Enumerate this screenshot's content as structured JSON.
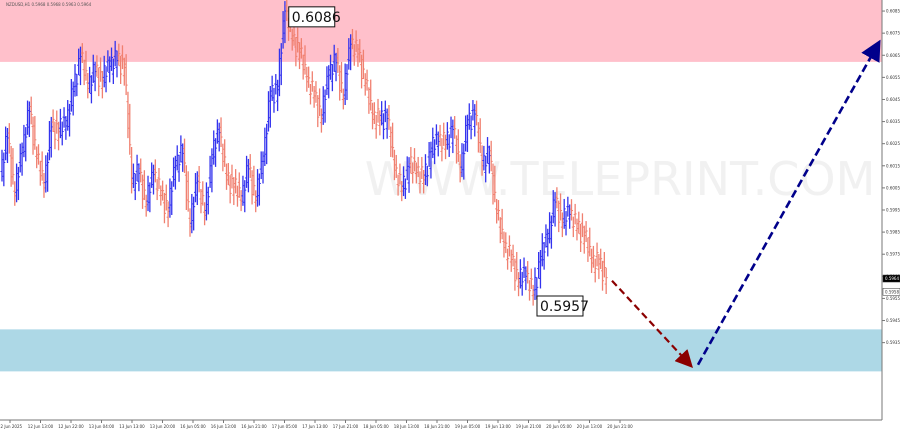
{
  "header": {
    "symbol_text": "NZDUSD,H1 0.5968 0.5968 0.5963 0.5964"
  },
  "chart_data": {
    "type": "ohlc",
    "title": "",
    "colors": {
      "up": "#3333ee",
      "down": "#f08070",
      "resistance_zone": "#ffc0cb",
      "support_zone": "#add8e6",
      "forecast_down": "#8b0000",
      "forecast_up": "#00008b",
      "frame": "#555555",
      "axis_text": "#333333"
    },
    "ylim": [
      0.59,
      0.609
    ],
    "y_ticks": [
      "0.6085",
      "0.6075",
      "0.6065",
      "0.6055",
      "0.6045",
      "0.6035",
      "0.6025",
      "0.6015",
      "0.6005",
      "0.5995",
      "0.5985",
      "0.5975",
      "0.5965",
      "0.5955",
      "0.5945",
      "0.5935"
    ],
    "x_ticks": [
      "12 Jun 2025",
      "12 Jun 13:00",
      "12 Jun 22:00",
      "13 Jun 04:00",
      "13 Jun 13:00",
      "13 Jun 20:00",
      "16 Jun 05:00",
      "16 Jun 13:00",
      "16 Jun 21:00",
      "17 Jun 05:00",
      "17 Jun 13:00",
      "17 Jun 21:00",
      "18 Jun 05:00",
      "18 Jun 13:00",
      "18 Jun 21:00",
      "19 Jun 05:00",
      "19 Jun 13:00",
      "19 Jun 21:00",
      "20 Jun 05:00",
      "20 Jun 13:00",
      "20 Jun 21:00"
    ],
    "zones": [
      {
        "name": "resistance",
        "from": 0.6062,
        "to": 0.609
      },
      {
        "name": "support",
        "from": 0.5922,
        "to": 0.5941
      }
    ],
    "price_path": [
      0.6011,
      0.6028,
      0.6002,
      0.6022,
      0.604,
      0.6019,
      0.6006,
      0.6033,
      0.6031,
      0.6034,
      0.6049,
      0.6065,
      0.6051,
      0.6058,
      0.6054,
      0.6061,
      0.6063,
      0.606,
      0.6008,
      0.6012,
      0.5998,
      0.6012,
      0.6002,
      0.5995,
      0.6016,
      0.6021,
      0.5988,
      0.6009,
      0.5993,
      0.6019,
      0.6031,
      0.6009,
      0.6006,
      0.6,
      0.6014,
      0.6,
      0.6018,
      0.6047,
      0.605,
      0.6086,
      0.6072,
      0.6067,
      0.6054,
      0.6047,
      0.6037,
      0.6057,
      0.6062,
      0.6046,
      0.6071,
      0.6066,
      0.6053,
      0.6037,
      0.6036,
      0.6037,
      0.6014,
      0.6004,
      0.6015,
      0.6013,
      0.6009,
      0.6022,
      0.6027,
      0.6025,
      0.6032,
      0.6013,
      0.6034,
      0.6039,
      0.6016,
      0.602,
      0.5994,
      0.5979,
      0.5973,
      0.5963,
      0.5966,
      0.5957,
      0.5973,
      0.5983,
      0.5999,
      0.599,
      0.5994,
      0.5987,
      0.5984,
      0.5972,
      0.5971,
      0.5965
    ],
    "annotations": [
      {
        "text": "0.6086",
        "x_index": 39,
        "value": 0.6086,
        "position": "above"
      },
      {
        "text": "0.5957",
        "x_index": 73,
        "value": 0.5957,
        "position": "below"
      }
    ],
    "current_price": {
      "label": "0.5964",
      "value": 0.5964,
      "label2": "0.5958",
      "value2": 0.5958
    },
    "forecast_down": {
      "from": [
        0.5963
      ],
      "to": 0.5925
    },
    "forecast_up": {
      "to": 0.607
    },
    "watermark_text": "WWW.TELEPRINT.COM",
    "grid": false
  }
}
